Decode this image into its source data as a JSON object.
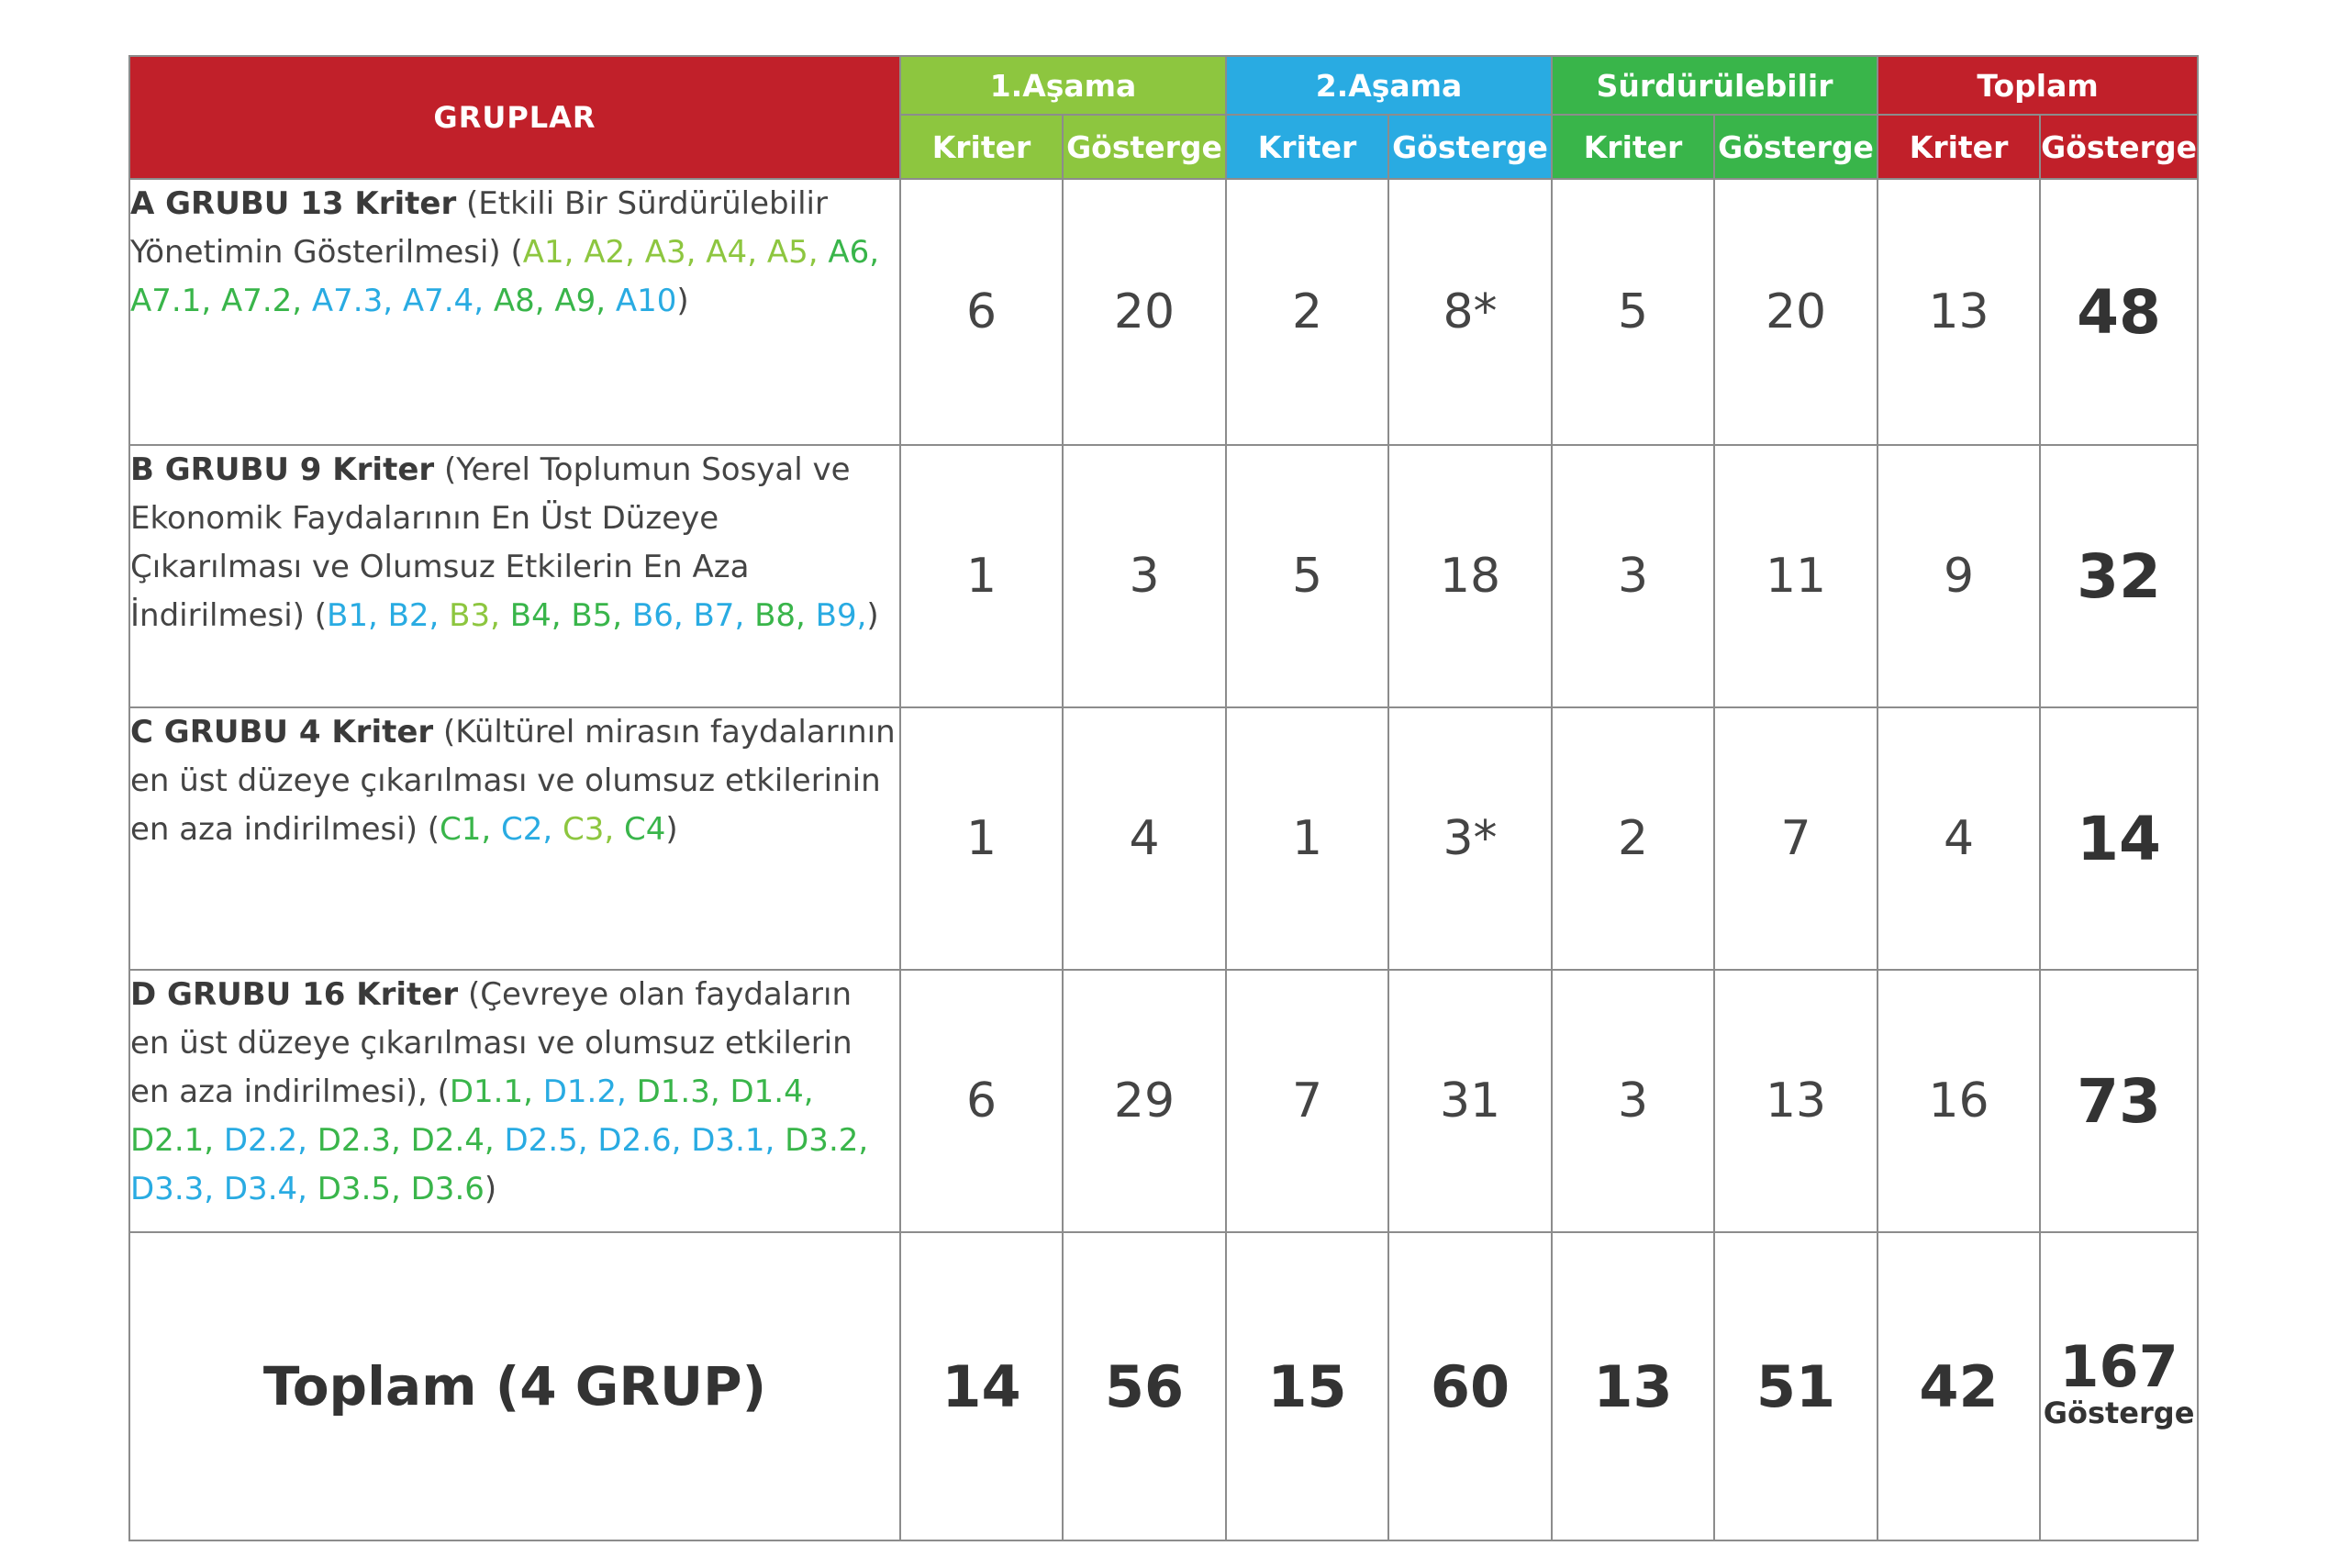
{
  "colors": {
    "red": "#c1202a",
    "light_green": "#8dc63f",
    "blue": "#29abe2",
    "dark_green": "#39b54a"
  },
  "header": {
    "gruplar": "GRUPLAR",
    "stages": [
      "1.Aşama",
      "2.Aşama",
      "Sürdürülebilir",
      "Toplam"
    ],
    "sub": [
      "Kriter",
      "Gösterge",
      "Kriter",
      "Gösterge",
      "Kriter",
      "Gösterge",
      "Kriter",
      "Gösterge"
    ]
  },
  "groups": [
    {
      "title": "A GRUBU 13 Kriter",
      "description": "(Etkili Bir Sürdürülebilir Yönetimin Gösterilmesi) (",
      "codes": [
        {
          "t": "A1,",
          "c": "light_green"
        },
        {
          "t": "A2,",
          "c": "light_green"
        },
        {
          "t": "A3,",
          "c": "light_green"
        },
        {
          "t": "A4,",
          "c": "light_green"
        },
        {
          "t": "A5,",
          "c": "light_green"
        },
        {
          "t": "A6,",
          "c": "dark_green"
        },
        {
          "t": "A7.1,",
          "c": "dark_green"
        },
        {
          "t": "A7.2,",
          "c": "dark_green"
        },
        {
          "t": "A7.3,",
          "c": "blue"
        },
        {
          "t": "A7.4,",
          "c": "blue"
        },
        {
          "t": "A8,",
          "c": "dark_green"
        },
        {
          "t": "A9,",
          "c": "dark_green"
        },
        {
          "t": "A10",
          "c": "blue"
        }
      ],
      "close": ")",
      "values": [
        "6",
        "20",
        "2",
        "8*",
        "5",
        "20",
        "13"
      ],
      "total": "48"
    },
    {
      "title": "B GRUBU 9 Kriter",
      "description": "(Yerel Toplumun Sosyal ve Ekonomik Faydalarının En Üst Düzeye Çıkarılması ve Olumsuz Etkilerin En Aza İndirilmesi) (",
      "codes": [
        {
          "t": "B1,",
          "c": "blue"
        },
        {
          "t": "B2,",
          "c": "blue"
        },
        {
          "t": "B3,",
          "c": "light_green"
        },
        {
          "t": "B4,",
          "c": "dark_green"
        },
        {
          "t": "B5,",
          "c": "dark_green"
        },
        {
          "t": "B6,",
          "c": "blue"
        },
        {
          "t": "B7,",
          "c": "blue"
        },
        {
          "t": "B8,",
          "c": "dark_green"
        },
        {
          "t": "B9,",
          "c": "blue"
        }
      ],
      "close": ")",
      "values": [
        "1",
        "3",
        "5",
        "18",
        "3",
        "11",
        "9"
      ],
      "total": "32"
    },
    {
      "title": "C GRUBU 4 Kriter",
      "description": "(Kültürel mirasın faydalarının en üst düzeye çıkarılması ve olumsuz etkilerinin en aza indirilmesi) (",
      "codes": [
        {
          "t": "C1,",
          "c": "dark_green"
        },
        {
          "t": "C2,",
          "c": "blue"
        },
        {
          "t": "C3,",
          "c": "light_green"
        },
        {
          "t": "C4",
          "c": "dark_green"
        }
      ],
      "close": ")",
      "values": [
        "1",
        "4",
        "1",
        "3*",
        "2",
        "7",
        "4"
      ],
      "total": "14"
    },
    {
      "title": "D GRUBU 16 Kriter",
      "description": "(Çevreye olan faydaların en üst düzeye çıkarılması ve olumsuz etkilerin en aza indirilmesi), (",
      "codes": [
        {
          "t": "D1.1,",
          "c": "dark_green"
        },
        {
          "t": "D1.2,",
          "c": "blue"
        },
        {
          "t": "D1.3,",
          "c": "dark_green"
        },
        {
          "t": "D1.4,",
          "c": "dark_green"
        },
        {
          "t": "D2.1,",
          "c": "dark_green"
        },
        {
          "t": "D2.2,",
          "c": "blue"
        },
        {
          "t": "D2.3,",
          "c": "dark_green"
        },
        {
          "t": "D2.4,",
          "c": "dark_green"
        },
        {
          "t": "D2.5,",
          "c": "blue"
        },
        {
          "t": "D2.6,",
          "c": "blue"
        },
        {
          "t": "D3.1,",
          "c": "blue"
        },
        {
          "t": "D3.2,",
          "c": "dark_green"
        },
        {
          "t": "D3.3,",
          "c": "blue"
        },
        {
          "t": "D3.4,",
          "c": "blue"
        },
        {
          "t": "D3.5,",
          "c": "dark_green"
        },
        {
          "t": "D3.6",
          "c": "dark_green"
        }
      ],
      "close": ")",
      "values": [
        "6",
        "29",
        "7",
        "31",
        "3",
        "13",
        "16"
      ],
      "total": "73"
    }
  ],
  "totals": {
    "label": "Toplam (4 GRUP)",
    "values": [
      "14",
      "56",
      "15",
      "60",
      "13",
      "51",
      "42"
    ],
    "grand_total": "167",
    "grand_total_note": "Gösterge"
  }
}
